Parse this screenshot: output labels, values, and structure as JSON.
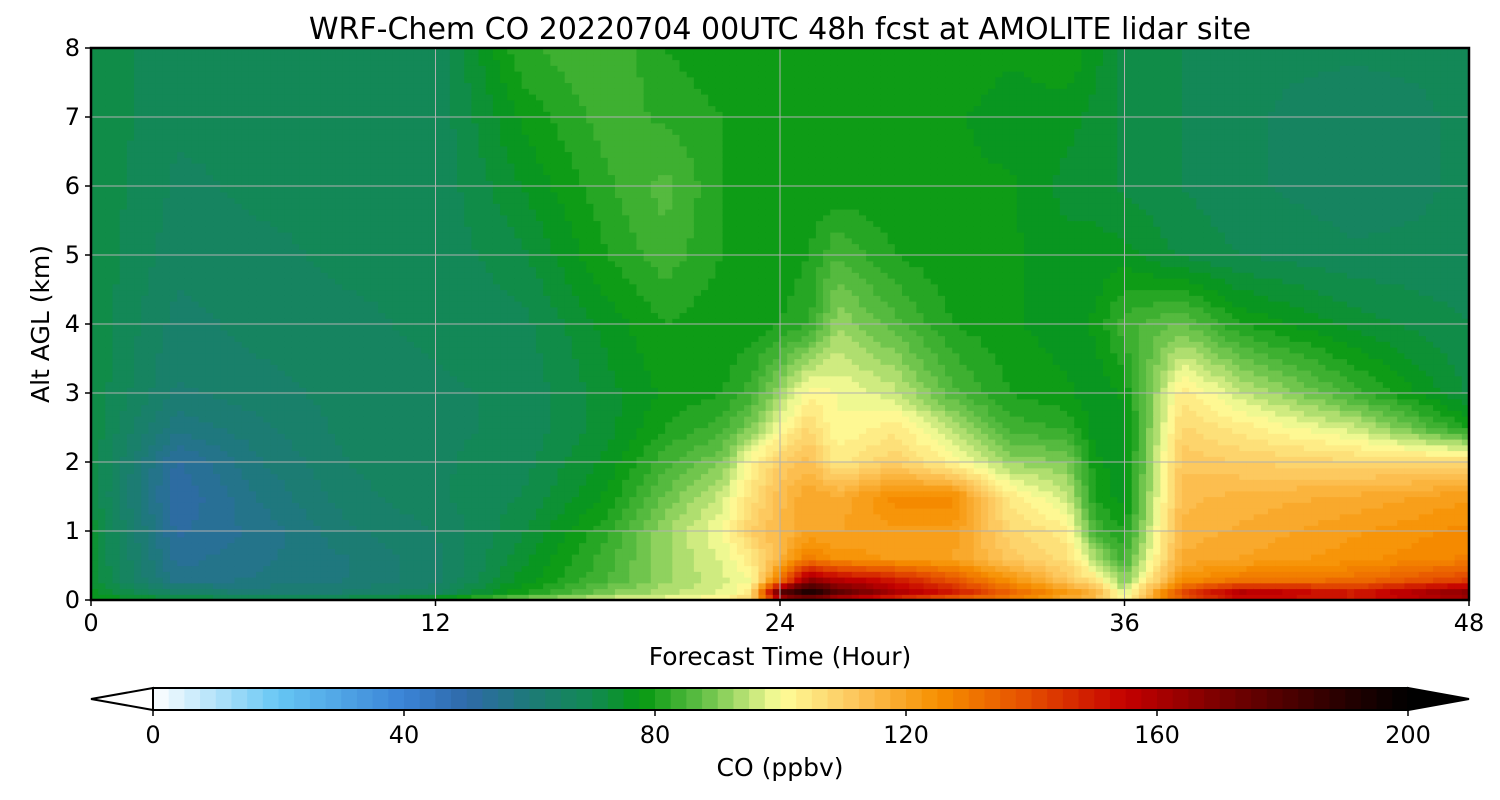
{
  "chart_data": {
    "type": "heatmap",
    "title": "WRF-Chem CO  20220704 00UTC 48h fcst at AMOLITE lidar site",
    "xlabel": "Forecast Time (Hour)",
    "ylabel": "Alt AGL (km)",
    "xlim": [
      0,
      48
    ],
    "ylim": [
      0,
      8
    ],
    "x_ticks": [
      0,
      12,
      24,
      36,
      48
    ],
    "y_ticks": [
      0,
      1,
      2,
      3,
      4,
      5,
      6,
      7,
      8
    ],
    "grid": true,
    "colorbar": {
      "label": "CO  (ppbv)",
      "orientation": "horizontal",
      "placement": "bottom",
      "range": [
        0,
        200
      ],
      "ticks": [
        0,
        40,
        80,
        120,
        160,
        200
      ],
      "extend": "both",
      "colormap_stops": [
        {
          "value": 0,
          "color": "#ffffff"
        },
        {
          "value": 20,
          "color": "#66c6f4"
        },
        {
          "value": 40,
          "color": "#3a83d6"
        },
        {
          "value": 50,
          "color": "#2f6aa8"
        },
        {
          "value": 60,
          "color": "#1d7a78"
        },
        {
          "value": 70,
          "color": "#128a52"
        },
        {
          "value": 78,
          "color": "#079912"
        },
        {
          "value": 88,
          "color": "#66c148"
        },
        {
          "value": 100,
          "color": "#fefe9a"
        },
        {
          "value": 112,
          "color": "#fdc55b"
        },
        {
          "value": 125,
          "color": "#f69000"
        },
        {
          "value": 140,
          "color": "#e44b00"
        },
        {
          "value": 155,
          "color": "#c40000"
        },
        {
          "value": 170,
          "color": "#7a0000"
        },
        {
          "value": 190,
          "color": "#260000"
        },
        {
          "value": 200,
          "color": "#000000"
        }
      ]
    },
    "x_hours": [
      0,
      3,
      6,
      9,
      12,
      15,
      18,
      20,
      22,
      23,
      24,
      25,
      26,
      28,
      30,
      32,
      34,
      35,
      36,
      38,
      40,
      44,
      48
    ],
    "y_km": [
      0,
      0.1,
      0.3,
      0.6,
      1,
      1.5,
      2,
      2.5,
      3,
      4,
      5,
      6,
      7,
      8
    ],
    "values": [
      [
        78,
        76,
        74,
        74,
        74,
        72,
        72,
        72,
        72,
        72,
        72,
        72,
        72,
        72
      ],
      [
        75,
        65,
        56,
        54,
        52,
        50,
        52,
        58,
        62,
        64,
        66,
        67,
        68,
        68
      ],
      [
        74,
        62,
        58,
        57,
        56,
        58,
        60,
        62,
        64,
        66,
        67,
        68,
        68,
        68
      ],
      [
        75,
        63,
        60,
        60,
        62,
        64,
        65,
        66,
        66,
        67,
        68,
        68,
        68,
        68
      ],
      [
        80,
        67,
        64,
        64,
        65,
        67,
        67,
        67,
        67,
        68,
        68,
        68,
        68,
        68
      ],
      [
        92,
        80,
        76,
        74,
        72,
        70,
        69,
        68,
        68,
        69,
        72,
        75,
        78,
        82
      ],
      [
        98,
        90,
        85,
        84,
        82,
        78,
        76,
        74,
        74,
        76,
        80,
        82,
        84,
        85
      ],
      [
        100,
        94,
        92,
        92,
        92,
        88,
        84,
        80,
        78,
        80,
        84,
        86,
        82,
        80
      ],
      [
        104,
        98,
        97,
        98,
        100,
        96,
        90,
        84,
        80,
        78,
        80,
        80,
        80,
        78
      ],
      [
        110,
        104,
        100,
        104,
        110,
        106,
        102,
        90,
        84,
        78,
        78,
        78,
        78,
        78
      ],
      [
        150,
        182,
        130,
        116,
        115,
        114,
        110,
        100,
        92,
        80,
        78,
        78,
        78,
        78
      ],
      [
        160,
        198,
        165,
        130,
        120,
        120,
        114,
        108,
        102,
        82,
        80,
        78,
        78,
        78
      ],
      [
        150,
        180,
        158,
        124,
        120,
        118,
        104,
        100,
        100,
        92,
        85,
        78,
        78,
        78
      ],
      [
        140,
        162,
        150,
        122,
        122,
        126,
        110,
        104,
        96,
        86,
        80,
        78,
        78,
        78
      ],
      [
        130,
        152,
        138,
        120,
        122,
        126,
        102,
        94,
        86,
        80,
        78,
        78,
        78,
        80
      ],
      [
        125,
        136,
        124,
        112,
        108,
        104,
        92,
        84,
        80,
        78,
        78,
        78,
        76,
        78
      ],
      [
        116,
        124,
        112,
        106,
        104,
        96,
        90,
        82,
        78,
        76,
        76,
        74,
        76,
        80
      ],
      [
        112,
        118,
        104,
        94,
        84,
        80,
        78,
        76,
        76,
        78,
        76,
        74,
        74,
        76
      ],
      [
        100,
        96,
        90,
        84,
        80,
        76,
        76,
        76,
        78,
        84,
        76,
        72,
        72,
        72
      ],
      [
        134,
        142,
        124,
        118,
        116,
        114,
        112,
        108,
        104,
        88,
        72,
        70,
        70,
        70
      ],
      [
        150,
        162,
        130,
        120,
        118,
        116,
        110,
        104,
        96,
        80,
        70,
        68,
        68,
        68
      ],
      [
        148,
        152,
        132,
        124,
        122,
        118,
        108,
        96,
        84,
        74,
        68,
        66,
        66,
        68
      ],
      [
        158,
        170,
        142,
        128,
        126,
        122,
        108,
        80,
        72,
        70,
        68,
        68,
        68,
        68
      ]
    ]
  }
}
